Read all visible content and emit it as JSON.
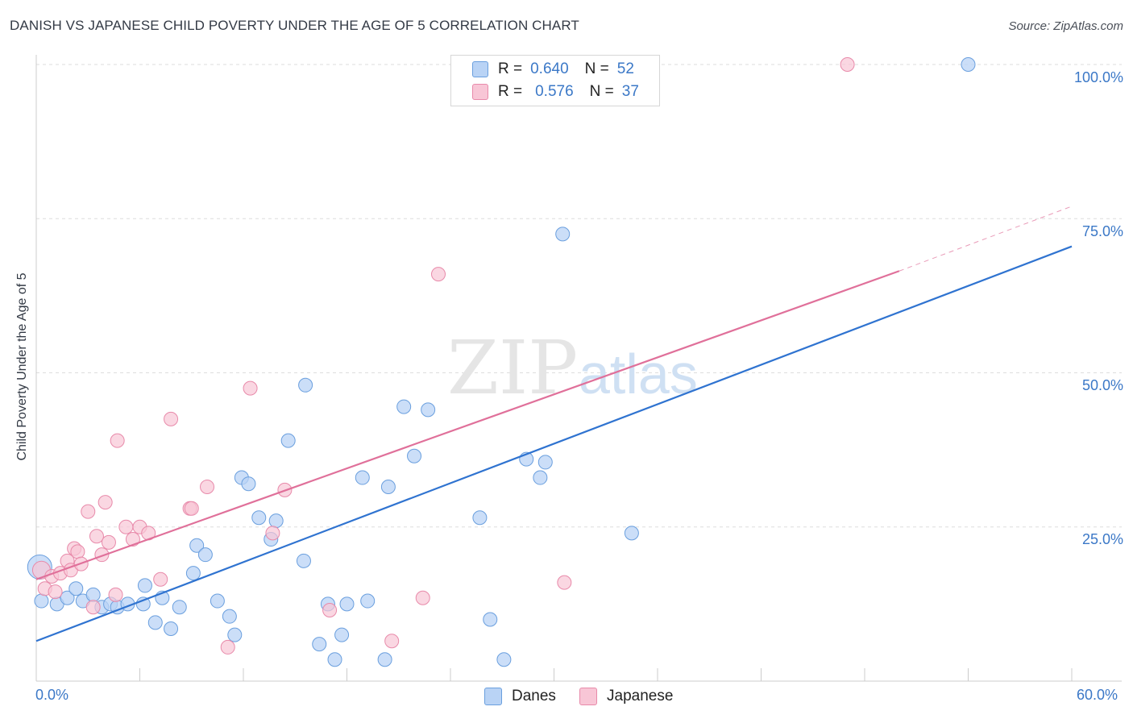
{
  "title": "DANISH VS JAPANESE CHILD POVERTY UNDER THE AGE OF 5 CORRELATION CHART",
  "source": "Source: ZipAtlas.com",
  "watermark_zip": "ZIP",
  "watermark_atlas": "atlas",
  "legend": {
    "danes": {
      "r_label": "R =",
      "r_value": "0.640",
      "n_label": "N =",
      "n_value": "52"
    },
    "japanese": {
      "r_label": "R =",
      "r_value": "0.576",
      "n_label": "N =",
      "n_value": "37"
    }
  },
  "colors": {
    "danes_fill": "#b9d3f5",
    "danes_stroke": "#6a9fde",
    "danes_line": "#2f73d0",
    "japanese_fill": "#f8c6d6",
    "japanese_stroke": "#e88aaa",
    "japanese_line": "#e0709a",
    "grid": "#dddddd",
    "axis_text": "#3b78c7"
  },
  "chart_data": {
    "type": "scatter",
    "title": "DANISH VS JAPANESE CHILD POVERTY UNDER THE AGE OF 5 CORRELATION CHART",
    "xlabel": "",
    "ylabel": "Child Poverty Under the Age of 5",
    "xlim": [
      0,
      60
    ],
    "ylim": [
      0,
      105
    ],
    "x_tick_labels": [
      "0.0%",
      "60.0%"
    ],
    "y_ticks": [
      25,
      50,
      75,
      100
    ],
    "y_tick_labels": [
      "25.0%",
      "50.0%",
      "75.0%",
      "100.0%"
    ],
    "grid": true,
    "legend_bottom": [
      "Danes",
      "Japanese"
    ],
    "series": [
      {
        "name": "Danes",
        "r": 0.64,
        "n": 52,
        "trend": {
          "x0": 0,
          "y0": 6.5,
          "x1": 60,
          "y1": 70.5
        },
        "points": [
          [
            0.2,
            18.5
          ],
          [
            0.3,
            13
          ],
          [
            1.2,
            12.5
          ],
          [
            1.8,
            13.5
          ],
          [
            2.3,
            15
          ],
          [
            2.7,
            13
          ],
          [
            3.3,
            14
          ],
          [
            3.8,
            12
          ],
          [
            4.3,
            12.5
          ],
          [
            4.7,
            12
          ],
          [
            5.3,
            12.5
          ],
          [
            6.2,
            12.5
          ],
          [
            6.3,
            15.5
          ],
          [
            6.9,
            9.5
          ],
          [
            7.3,
            13.5
          ],
          [
            7.8,
            8.5
          ],
          [
            8.3,
            12
          ],
          [
            9.1,
            17.5
          ],
          [
            9.3,
            22
          ],
          [
            9.8,
            20.5
          ],
          [
            10.5,
            13
          ],
          [
            11.2,
            10.5
          ],
          [
            11.5,
            7.5
          ],
          [
            11.9,
            33
          ],
          [
            12.3,
            32
          ],
          [
            12.9,
            26.5
          ],
          [
            13.6,
            23
          ],
          [
            13.9,
            26
          ],
          [
            14.6,
            39
          ],
          [
            15.5,
            19.5
          ],
          [
            15.6,
            48
          ],
          [
            16.4,
            6
          ],
          [
            16.9,
            12.5
          ],
          [
            17.3,
            3.5
          ],
          [
            17.7,
            7.5
          ],
          [
            18,
            12.5
          ],
          [
            18.9,
            33
          ],
          [
            19.2,
            13
          ],
          [
            20.2,
            3.5
          ],
          [
            20.4,
            31.5
          ],
          [
            21.3,
            44.5
          ],
          [
            21.9,
            36.5
          ],
          [
            22.7,
            44
          ],
          [
            25.7,
            26.5
          ],
          [
            26.3,
            10
          ],
          [
            27.1,
            3.5
          ],
          [
            28.4,
            36
          ],
          [
            29.2,
            33
          ],
          [
            29.5,
            35.5
          ],
          [
            30.5,
            72.5
          ],
          [
            34.5,
            24
          ],
          [
            54,
            100
          ]
        ]
      },
      {
        "name": "Japanese",
        "r": 0.576,
        "n": 37,
        "trend": {
          "x0": 0,
          "y0": 16.5,
          "x1": 50,
          "y1": 66.5,
          "dash_x1": 60,
          "dash_y1": 77
        },
        "points": [
          [
            0.3,
            18
          ],
          [
            0.5,
            15
          ],
          [
            0.9,
            17
          ],
          [
            1.1,
            14.5
          ],
          [
            1.4,
            17.5
          ],
          [
            1.8,
            19.5
          ],
          [
            2,
            18
          ],
          [
            2.2,
            21.5
          ],
          [
            2.4,
            21
          ],
          [
            2.6,
            19
          ],
          [
            3,
            27.5
          ],
          [
            3.3,
            12
          ],
          [
            3.5,
            23.5
          ],
          [
            3.8,
            20.5
          ],
          [
            4,
            29
          ],
          [
            4.2,
            22.5
          ],
          [
            4.6,
            14
          ],
          [
            4.7,
            39
          ],
          [
            5.2,
            25
          ],
          [
            5.6,
            23
          ],
          [
            6,
            25
          ],
          [
            6.5,
            24
          ],
          [
            7.2,
            16.5
          ],
          [
            7.8,
            42.5
          ],
          [
            8.9,
            28
          ],
          [
            9,
            28
          ],
          [
            9.9,
            31.5
          ],
          [
            11.1,
            5.5
          ],
          [
            12.4,
            47.5
          ],
          [
            13.7,
            24
          ],
          [
            14.4,
            31
          ],
          [
            17,
            11.5
          ],
          [
            20.6,
            6.5
          ],
          [
            22.4,
            13.5
          ],
          [
            23.3,
            66
          ],
          [
            30.6,
            16
          ],
          [
            47,
            100
          ]
        ]
      }
    ]
  }
}
